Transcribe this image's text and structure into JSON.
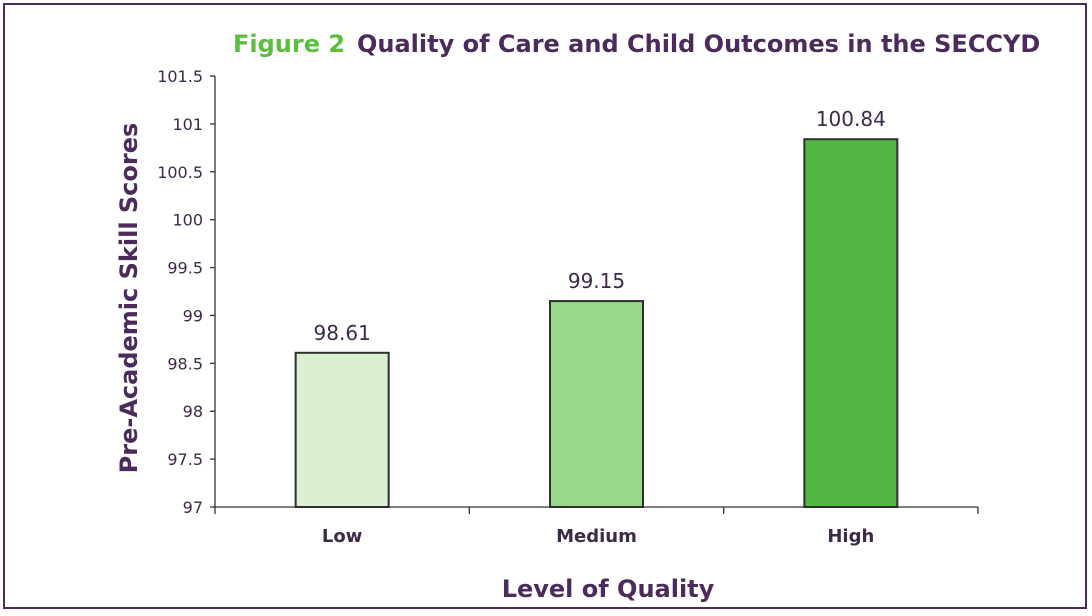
{
  "colors": {
    "figure_label": "#5bbf3e",
    "title": "#4b2a5c",
    "axis": "#333333",
    "text": "#3d2a48",
    "bar_stroke": "#2f2f2f",
    "bar_fills": [
      "#dbf0d3",
      "#97d98b",
      "#53b843"
    ]
  },
  "chart_data": {
    "type": "bar",
    "figure_label": "Figure 2",
    "title": "Quality of Care and Child Outcomes in the SECCYD",
    "xlabel": "Level of Quality",
    "ylabel": "Pre-Academic Skill Scores",
    "categories": [
      "Low",
      "Medium",
      "High"
    ],
    "values": [
      98.61,
      99.15,
      100.84
    ],
    "value_labels": [
      "98.61",
      "99.15",
      "100.84"
    ],
    "ylim": [
      97,
      101.5
    ],
    "yticks": [
      97,
      97.5,
      98,
      98.5,
      99,
      99.5,
      100,
      100.5,
      101,
      101.5
    ],
    "ytick_labels": [
      "97",
      "97.5",
      "98",
      "98.5",
      "99",
      "99.5",
      "100",
      "100.5",
      "101",
      "101.5"
    ],
    "grid": false,
    "legend": "none"
  }
}
